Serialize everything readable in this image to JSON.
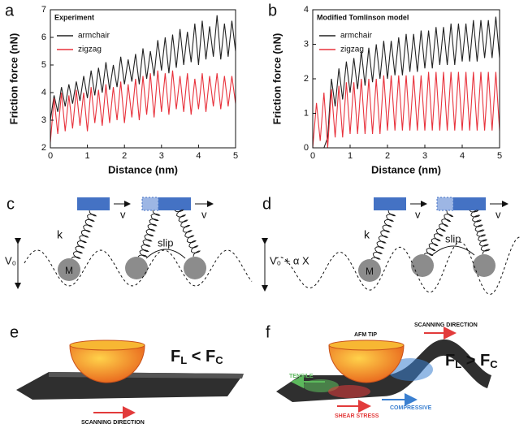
{
  "chart_data": [
    {
      "type": "line",
      "label": "a",
      "title": "Experiment",
      "xlabel": "Distance (nm)",
      "ylabel": "Friction force (nN)",
      "x": [
        0,
        0.1,
        0.2,
        0.3,
        0.4,
        0.5,
        0.6,
        0.7,
        0.8,
        0.9,
        1,
        1.1,
        1.2,
        1.3,
        1.4,
        1.5,
        1.6,
        1.7,
        1.8,
        1.9,
        2,
        2.1,
        2.2,
        2.3,
        2.4,
        2.5,
        2.6,
        2.7,
        2.8,
        2.9,
        3,
        3.1,
        3.2,
        3.3,
        3.4,
        3.5,
        3.6,
        3.7,
        3.8,
        3.9,
        4,
        4.1,
        4.2,
        4.3,
        4.4,
        4.5,
        4.6,
        4.7,
        4.8,
        4.9,
        5
      ],
      "series": [
        {
          "name": "armchair",
          "color": "#222222",
          "values": [
            3.0,
            3.9,
            3.3,
            4.2,
            3.5,
            4.3,
            3.6,
            4.4,
            3.7,
            4.6,
            3.8,
            4.8,
            3.9,
            4.9,
            4.0,
            5.1,
            4.1,
            5.0,
            4.2,
            5.3,
            4.3,
            5.2,
            4.4,
            5.4,
            4.3,
            5.6,
            4.5,
            5.5,
            4.6,
            5.9,
            4.8,
            6.0,
            4.7,
            6.1,
            4.9,
            6.3,
            5.0,
            6.2,
            5.1,
            6.5,
            5.0,
            6.6,
            5.2,
            6.4,
            5.3,
            6.8,
            5.2,
            6.5,
            5.3,
            6.6,
            5.5
          ]
        },
        {
          "name": "zigzag",
          "color": "#e8323c",
          "values": [
            2.2,
            3.8,
            2.5,
            4.0,
            2.6,
            3.9,
            2.7,
            4.1,
            2.8,
            4.0,
            2.6,
            4.2,
            2.9,
            4.1,
            2.8,
            4.3,
            2.9,
            4.2,
            3.0,
            4.4,
            2.9,
            4.3,
            3.1,
            4.5,
            3.0,
            4.6,
            3.2,
            4.7,
            3.1,
            4.8,
            3.3,
            4.7,
            3.2,
            4.8,
            3.4,
            4.6,
            3.3,
            4.7,
            3.2,
            4.5,
            3.4,
            4.7,
            3.3,
            4.6,
            3.5,
            4.7,
            3.4,
            4.6,
            3.5,
            4.6,
            3.6
          ]
        }
      ],
      "xlim": [
        0,
        5
      ],
      "ylim": [
        2,
        7
      ],
      "xticks": [
        0,
        1,
        2,
        3,
        4,
        5
      ],
      "yticks": [
        2,
        3,
        4,
        5,
        6,
        7
      ]
    },
    {
      "type": "line",
      "label": "b",
      "title": "Modified Tomlinson model",
      "xlabel": "Distance (nm)",
      "ylabel": "Friction force (nN)",
      "x": [
        0,
        0.1,
        0.2,
        0.3,
        0.4,
        0.5,
        0.6,
        0.7,
        0.8,
        0.9,
        1,
        1.1,
        1.2,
        1.3,
        1.4,
        1.5,
        1.6,
        1.7,
        1.8,
        1.9,
        2,
        2.1,
        2.2,
        2.3,
        2.4,
        2.5,
        2.6,
        2.7,
        2.8,
        2.9,
        3,
        3.1,
        3.2,
        3.3,
        3.4,
        3.5,
        3.6,
        3.7,
        3.8,
        3.9,
        4,
        4.1,
        4.2,
        4.3,
        4.4,
        4.5,
        4.6,
        4.7,
        4.8,
        4.9,
        5
      ],
      "series": [
        {
          "name": "armchair",
          "color": "#222222",
          "values": [
            0.0,
            0.0,
            0.0,
            0.0,
            0.3,
            2.0,
            1.2,
            2.3,
            1.4,
            2.5,
            1.6,
            2.6,
            1.7,
            2.8,
            1.8,
            2.9,
            1.9,
            3.0,
            2.0,
            3.1,
            2.0,
            3.1,
            2.1,
            3.2,
            2.1,
            3.3,
            2.2,
            3.3,
            2.2,
            3.4,
            2.3,
            3.4,
            2.3,
            3.5,
            2.4,
            3.5,
            2.4,
            3.6,
            2.4,
            3.6,
            2.5,
            3.6,
            2.5,
            3.7,
            2.5,
            3.7,
            2.6,
            3.7,
            2.6,
            3.8,
            2.6
          ]
        },
        {
          "name": "zigzag",
          "color": "#e8323c",
          "values": [
            0.0,
            1.3,
            0.2,
            1.6,
            0.0,
            1.7,
            0.3,
            1.8,
            0.3,
            1.9,
            0.4,
            1.9,
            0.4,
            2.0,
            0.4,
            2.0,
            0.4,
            2.0,
            0.4,
            2.1,
            0.5,
            2.1,
            0.5,
            2.1,
            0.5,
            2.1,
            0.5,
            2.1,
            0.5,
            2.1,
            0.5,
            2.2,
            0.5,
            2.2,
            0.5,
            2.2,
            0.5,
            2.2,
            0.5,
            2.2,
            0.5,
            2.2,
            0.5,
            2.2,
            0.5,
            2.2,
            0.5,
            2.2,
            0.5,
            2.2,
            0.5
          ]
        }
      ],
      "xlim": [
        0,
        5
      ],
      "ylim": [
        0,
        4
      ],
      "xticks": [
        0,
        1,
        2,
        3,
        4,
        5
      ],
      "yticks": [
        0,
        1,
        2,
        3,
        4
      ]
    }
  ],
  "panels": {
    "c": {
      "label": "c",
      "v1": "v",
      "v2": "v",
      "k": "k",
      "slip": "slip",
      "mass": "M",
      "potential": "V₀"
    },
    "d": {
      "label": "d",
      "v1": "v",
      "v2": "v",
      "k": "k",
      "slip": "slip",
      "mass": "M",
      "potential": "V₀ + α X"
    },
    "e": {
      "label": "e",
      "formula": [
        "F",
        "L",
        " < ",
        "F",
        "C"
      ],
      "direction": "SCANNING DIRECTION"
    },
    "f": {
      "label": "f",
      "formula": [
        "F",
        "L",
        " > ",
        "F",
        "C"
      ],
      "tip": "AFM TIP",
      "direction": "SCANNING DIRECTION",
      "tensile": "TENSILE",
      "compressive": "COMPRESSIVE",
      "shear": "SHEAR STRESS"
    }
  }
}
